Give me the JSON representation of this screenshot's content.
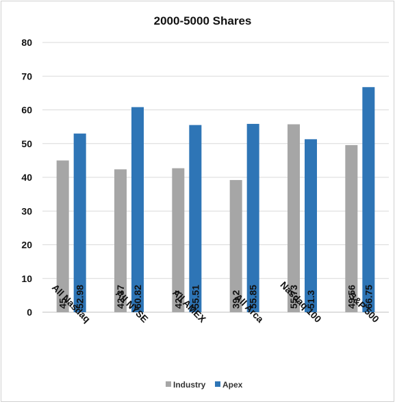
{
  "chart_data": {
    "type": "bar",
    "title": "2000-5000 Shares",
    "xlabel": "",
    "ylabel": "",
    "ylim": [
      0,
      80
    ],
    "yticks": [
      0,
      10,
      20,
      30,
      40,
      50,
      60,
      70,
      80
    ],
    "grid": true,
    "legend_position": "bottom",
    "categories": [
      "All Nasdaq",
      "All NYSE",
      "All AMEX",
      "All Arca",
      "Nasdaq 100",
      "S&P 500"
    ],
    "series": [
      {
        "name": "Industry",
        "color": "#a6a6a6",
        "values": [
          45,
          42.37,
          42.7,
          39.2,
          55.73,
          49.56
        ],
        "labels": [
          "45",
          "42.37",
          "42.7",
          "39.2",
          "55.73",
          "49.56"
        ]
      },
      {
        "name": "Apex",
        "color": "#2e75b6",
        "values": [
          52.98,
          60.82,
          55.51,
          55.85,
          51.3,
          66.75
        ],
        "labels": [
          "52.98",
          "60.82",
          "55.51",
          "55.85",
          "51.3",
          "66.75"
        ]
      }
    ]
  }
}
